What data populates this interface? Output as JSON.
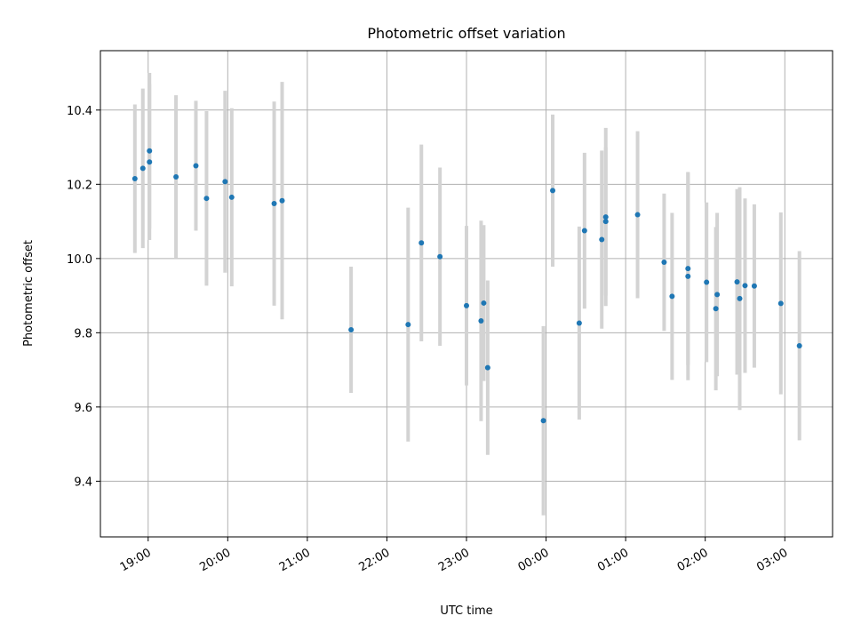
{
  "chart_data": {
    "type": "scatter",
    "title": "Photometric offset variation",
    "xlabel": "UTC time",
    "ylabel": "Photometric offset",
    "x_ticks": [
      "19:00",
      "20:00",
      "21:00",
      "22:00",
      "23:00",
      "00:00",
      "01:00",
      "02:00",
      "03:00"
    ],
    "xlim": [
      "18:24",
      "03:36"
    ],
    "y_ticks": [
      "9.4",
      "9.6",
      "9.8",
      "10.0",
      "10.2",
      "10.4"
    ],
    "ylim": [
      9.25,
      10.56
    ],
    "grid": true,
    "colors": {
      "point": "#1f77b4",
      "errorbar": "#d3d3d3",
      "grid": "#b0b0b0"
    },
    "series": [
      {
        "points": [
          {
            "t": "18:50",
            "y": 10.215,
            "err": 0.2
          },
          {
            "t": "18:56",
            "y": 10.243,
            "err": 0.215
          },
          {
            "t": "19:01",
            "y": 10.26,
            "err": 0.21
          },
          {
            "t": "19:01",
            "y": 10.29,
            "err": 0.21
          },
          {
            "t": "19:21",
            "y": 10.22,
            "err": 0.22
          },
          {
            "t": "19:36",
            "y": 10.25,
            "err": 0.175
          },
          {
            "t": "19:44",
            "y": 10.162,
            "err": 0.235
          },
          {
            "t": "19:58",
            "y": 10.207,
            "err": 0.245
          },
          {
            "t": "20:03",
            "y": 10.165,
            "err": 0.24
          },
          {
            "t": "20:35",
            "y": 10.148,
            "err": 0.275
          },
          {
            "t": "20:41",
            "y": 10.156,
            "err": 0.32
          },
          {
            "t": "21:33",
            "y": 9.808,
            "err": 0.17
          },
          {
            "t": "22:16",
            "y": 9.822,
            "err": 0.315
          },
          {
            "t": "22:26",
            "y": 10.042,
            "err": 0.265
          },
          {
            "t": "22:40",
            "y": 10.005,
            "err": 0.24
          },
          {
            "t": "23:00",
            "y": 9.873,
            "err": 0.215
          },
          {
            "t": "23:11",
            "y": 9.832,
            "err": 0.27
          },
          {
            "t": "23:13",
            "y": 9.88,
            "err": 0.21
          },
          {
            "t": "23:16",
            "y": 9.706,
            "err": 0.235
          },
          {
            "t": "23:58",
            "y": 9.563,
            "err": 0.255
          },
          {
            "t": "00:05",
            "y": 10.183,
            "err": 0.205
          },
          {
            "t": "00:25",
            "y": 9.826,
            "err": 0.26
          },
          {
            "t": "00:29",
            "y": 10.075,
            "err": 0.21
          },
          {
            "t": "00:42",
            "y": 10.051,
            "err": 0.24
          },
          {
            "t": "00:45",
            "y": 10.112,
            "err": 0.24
          },
          {
            "t": "00:45",
            "y": 10.1,
            "err": 0.2
          },
          {
            "t": "01:09",
            "y": 10.118,
            "err": 0.225
          },
          {
            "t": "01:29",
            "y": 9.99,
            "err": 0.185
          },
          {
            "t": "01:35",
            "y": 9.898,
            "err": 0.225
          },
          {
            "t": "01:47",
            "y": 9.973,
            "err": 0.26
          },
          {
            "t": "01:47",
            "y": 9.952,
            "err": 0.28
          },
          {
            "t": "02:01",
            "y": 9.936,
            "err": 0.215
          },
          {
            "t": "02:08",
            "y": 9.865,
            "err": 0.22
          },
          {
            "t": "02:09",
            "y": 9.903,
            "err": 0.22
          },
          {
            "t": "02:24",
            "y": 9.937,
            "err": 0.25
          },
          {
            "t": "02:26",
            "y": 9.892,
            "err": 0.3
          },
          {
            "t": "02:30",
            "y": 9.927,
            "err": 0.235
          },
          {
            "t": "02:37",
            "y": 9.926,
            "err": 0.22
          },
          {
            "t": "02:57",
            "y": 9.879,
            "err": 0.245
          },
          {
            "t": "03:11",
            "y": 9.765,
            "err": 0.255
          }
        ]
      }
    ]
  }
}
